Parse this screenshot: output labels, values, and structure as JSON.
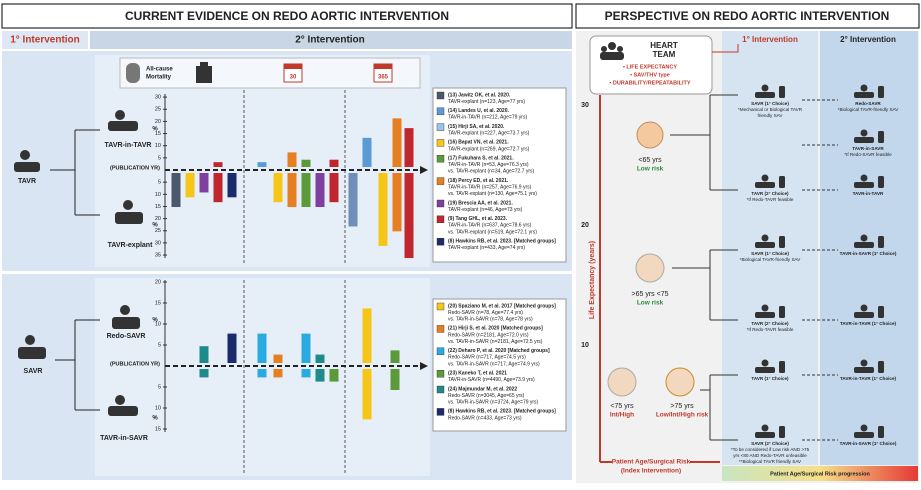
{
  "left": {
    "title": "CURRENT EVIDENCE ON REDO AORTIC INTERVENTION",
    "col1": "1° Intervention",
    "col2": "2° Intervention",
    "mortality": [
      "All-cause",
      "Mortality"
    ],
    "cal_30": "30",
    "cal_365": "365",
    "tavr": {
      "label": "TAVR",
      "upper": "TAVR-in-TAVR",
      "lower": "TAVR-explant",
      "pct": "%",
      "pub": "(PUBLICATION YR)",
      "yticks_up": [
        5,
        10,
        15,
        20,
        25,
        30
      ],
      "yticks_down": [
        5,
        10,
        15,
        20,
        25,
        30,
        35
      ],
      "bars": [
        {
          "color": "#4a5a6a",
          "up": 0,
          "down": 14
        },
        {
          "color": "#f5c518",
          "up": 0,
          "down": 10
        },
        {
          "color": "#7e3fa0",
          "up": 0,
          "down": 8
        },
        {
          "color": "#c0262d",
          "up": 2,
          "down": 12
        },
        {
          "color": "#1a2a6c",
          "up": 0,
          "down": 10
        },
        {
          "color": "#5b9bd5",
          "up": 2,
          "down": 0
        },
        {
          "color": "#f5c518",
          "up": 0,
          "down": 12
        },
        {
          "color": "#e67e22",
          "up": 6,
          "down": 14
        },
        {
          "color": "#5a9a3a",
          "up": 3,
          "down": 14
        },
        {
          "color": "#7e3fa0",
          "up": 0,
          "down": 14
        },
        {
          "color": "#c0262d",
          "up": 3,
          "down": 12
        },
        {
          "color": "#6f8fb8",
          "up": 0,
          "down": 22
        },
        {
          "color": "#5b9bd5",
          "up": 12,
          "down": 0
        },
        {
          "color": "#f5c518",
          "up": 0,
          "down": 30
        },
        {
          "color": "#e67e22",
          "up": 20,
          "down": 24
        },
        {
          "color": "#c0262d",
          "up": 16,
          "down": 35
        }
      ],
      "studies": [
        {
          "color": "#4a5a6a",
          "lines": [
            "(13) Jawitz OK, et al. 2020.",
            "TAVR-explant (n=123, Age=77 yrs)"
          ]
        },
        {
          "color": "#5b9bd5",
          "lines": [
            "(14) Landes U, et al. 2020.",
            "TAVR-in-TAVR (n=212, Age=79 yrs)"
          ]
        },
        {
          "color": "#9cc3e6",
          "lines": [
            "(15) Hirji SA, et al. 2020.",
            "TAVR-explant (n=227, Age=73.7 yrs)"
          ]
        },
        {
          "color": "#f5c518",
          "lines": [
            "(16) Bapat VN, et al. 2021.",
            "TAVR-explant (n=269, Age=72.7 yrs)"
          ]
        },
        {
          "color": "#5a9a3a",
          "lines": [
            "(17) Fukuhara S, et al. 2021.",
            "TAVR-in-TAVR (n=53, Age=76.3 yrs)",
            "vs. TAVR-explant (n=34, Age=72.7 yrs)"
          ]
        },
        {
          "color": "#e67e22",
          "lines": [
            "(18) Percy ED, et al. 2021.",
            "TAVR-in-TAVR (n=257, Age=76.9 yrs)",
            "vs. TAVR-explant (n=130, Age=75.1 yrs)"
          ]
        },
        {
          "color": "#7e3fa0",
          "lines": [
            "(19) Brescia AA, et al. 2021.",
            "TAVR-explant (n=46, Age=73 yrs)"
          ]
        },
        {
          "color": "#c0262d",
          "lines": [
            "(9) Tang GHL, et al. 2023.",
            "TAVR-in-TAVR (n=637, Age=78.6 yrs)",
            "vs. TAVR-explant (n=519, Age=72.1 yrs)"
          ]
        },
        {
          "color": "#1a2a6c",
          "lines": [
            "(8) Hawkins RB, et al. 2023. [Matched groups]",
            "TAVR-explant (n=433, Age=74 yrs)"
          ]
        }
      ]
    },
    "savr": {
      "label": "SAVR",
      "upper": "Redo-SAVR",
      "lower": "TAVR-in-SAVR",
      "pct": "%",
      "pub": "(PUBLICATION YR)",
      "yticks_up": [
        5,
        10,
        15,
        20
      ],
      "yticks_down": [
        5,
        10,
        15
      ],
      "bars": [
        {
          "color": "#1f8a8a",
          "up": 4,
          "down": 2
        },
        {
          "color": "#1a2a6c",
          "up": 7,
          "down": 0
        },
        {
          "color": "#29abe2",
          "up": 7,
          "down": 2
        },
        {
          "color": "#e67e22",
          "up": 2,
          "down": 2
        },
        {
          "color": "#29abe2",
          "up": 7,
          "down": 2
        },
        {
          "color": "#1f8a8a",
          "up": 2,
          "down": 3
        },
        {
          "color": "#5a9a3a",
          "up": 0,
          "down": 3
        },
        {
          "color": "#f5c518",
          "up": 13,
          "down": 12
        },
        {
          "color": "#5a9a3a",
          "up": 3,
          "down": 5
        }
      ],
      "studies": [
        {
          "color": "#f5c518",
          "lines": [
            "(20) Spaziano M, et al. 2017 [Matched groups]",
            "Redo-SAVR (n=78, Age=77.4 yrs)",
            "vs. TAVR-in-SAVR (n=78, Age=78 yrs)"
          ]
        },
        {
          "color": "#e67e22",
          "lines": [
            "(21) Hirji S, et al. 2020 [Matched groups]",
            "Redo-SAVR (n=2181, Age=72.0 yrs)",
            "vs. TAVR-in-SAVR (n=2181, Age=72.5 yrs)"
          ]
        },
        {
          "color": "#29abe2",
          "lines": [
            "(22) Deharo P, et al. 2020 [Matched groups]",
            "Redo-SAVR (n=717, Age=74.5 yrs)",
            "vs. TAVR-in-SAVR (n=717, Age=74.9 yrs)"
          ]
        },
        {
          "color": "#5a9a3a",
          "lines": [
            "(23) Kaneko T, et al. 2021",
            "TAVR-in-SAVR (n=4490, Age=73.9 yrs)"
          ]
        },
        {
          "color": "#1f8a8a",
          "lines": [
            "(24) Majmundar M, et al. 2022",
            "Redo-SAVR (n=3045, Age=65 yrs)",
            "vs. TAVR-in-SAVR (n=3724, Age=79 yrs)"
          ]
        },
        {
          "color": "#1a2a6c",
          "lines": [
            "(8) Hawkins RB, et al. 2023. [Matched groups]",
            "Redo-SAVR (n=433, Age=73 yrs)"
          ]
        }
      ]
    }
  },
  "right": {
    "title": "PERSPECTIVE ON REDO AORTIC INTERVENTION",
    "heart": [
      "HEART",
      "TEAM"
    ],
    "bullets": [
      "• LIFE EXPECTANCY",
      "• SAV/THV type",
      "• DURABILITY/REPEATABILITY"
    ],
    "col1": "1° Intervention",
    "col2": "2° Intervention",
    "axis": "Life Expectancy (years)",
    "ticks": [
      30,
      20,
      10
    ],
    "groups": [
      [
        "<65 yrs",
        "Low risk"
      ],
      [
        ">65 yrs <75",
        "Low risk"
      ],
      [
        "<75 yrs",
        "Int/High"
      ],
      [
        ">75 yrs",
        "Low/Int/High risk"
      ]
    ],
    "xlabel": [
      "Patient Age/Surgical Risk",
      "(Index Intervention)"
    ],
    "progression": "Patient Age/Surgical Risk progression",
    "first": [
      [
        "SAVR (1° Choice)",
        "*Mechanical or Biological TAVR",
        "friendly SAV"
      ],
      [
        "TAVR (2° Choice)",
        "*If Redo-TAVR feasible"
      ],
      [
        "SAVR (1° Choice)",
        "*Biological TAVR-friendly SAV"
      ],
      [
        "TAVR (2° Choice)",
        "*If Redo-TAVR feasible"
      ],
      [
        "TAVR (1° Choice)"
      ],
      [
        "SAVR (2° Choice)",
        "*To be considered if Low risk AND >75",
        "yrs <80 AND Redo-TAVR unfeasible",
        "**Biological TAVR friendly SAV"
      ]
    ],
    "second": [
      [
        "Redo-SAVR",
        "*Biological TAVR-friendly SAV"
      ],
      [
        "TAVR-in-SAVR",
        "*If Redo-SAVR feasible"
      ],
      [
        "TAVR-in-TAVR"
      ],
      [
        "TAVR-in-SAVR (1° Choice)"
      ],
      [
        "TAVR-in-TAVR (1° Choice)"
      ],
      [
        "TAVR-in-TAVR (1° Choice)"
      ],
      [
        "TAVR-in-SAVR (1° Choice)"
      ]
    ]
  }
}
